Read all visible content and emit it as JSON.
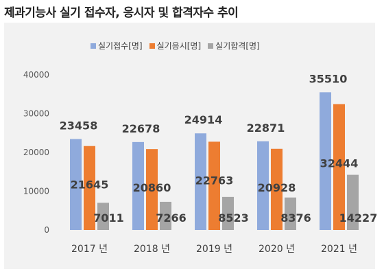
{
  "title": "제과기능사 실기 접수자, 응시자 및 합격자수 추이",
  "chart_data": {
    "type": "bar",
    "categories": [
      "2017 년",
      "2018 년",
      "2019 년",
      "2020 년",
      "2021 년"
    ],
    "series": [
      {
        "name": "실기접수[명]",
        "values": [
          23458,
          22678,
          24914,
          22871,
          35510
        ],
        "color": "#8faadc"
      },
      {
        "name": "실기응시[명]",
        "values": [
          21645,
          20860,
          22763,
          20928,
          32444
        ],
        "color": "#ed7d31"
      },
      {
        "name": "실기합격[명]",
        "values": [
          7011,
          7266,
          8523,
          8376,
          14227
        ],
        "color": "#a5a5a5"
      }
    ],
    "yticks": [
      "0",
      "10000",
      "20000",
      "30000",
      "40000"
    ],
    "ylim": [
      0,
      40000
    ],
    "legend_position": "top",
    "grid": false
  }
}
